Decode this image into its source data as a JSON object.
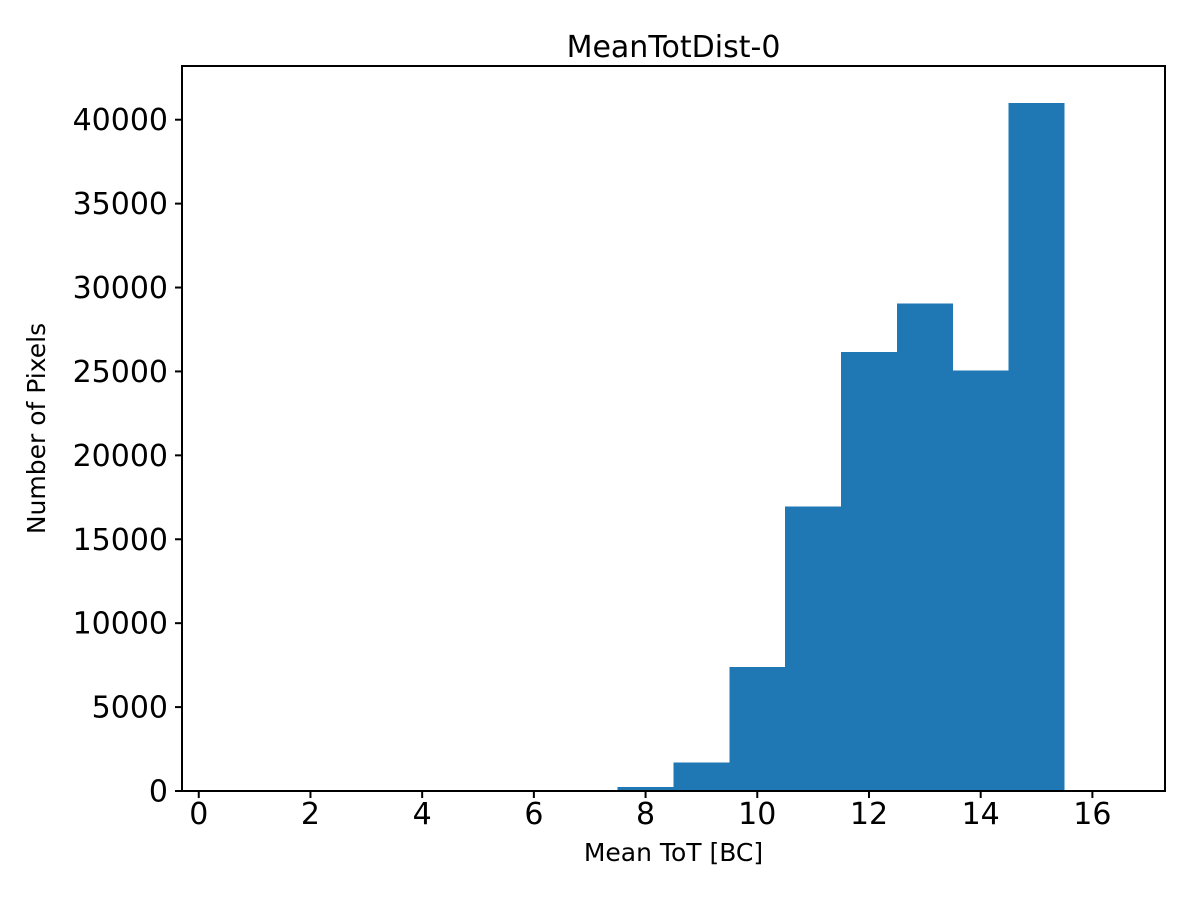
{
  "chart_data": {
    "type": "bar",
    "subtype": "histogram",
    "title": "MeanTotDist-0",
    "xlabel": "Mean ToT [BC]",
    "ylabel": "Number of Pixels",
    "bar_color": "#1f77b4",
    "axis_color": "#000000",
    "text_color": "#000000",
    "background_color": "#ffffff",
    "bin_edges": [
      7.5,
      8.5,
      9.5,
      10.5,
      11.5,
      12.5,
      13.5,
      14.5,
      15.5
    ],
    "values": [
      250,
      1700,
      7400,
      16950,
      26150,
      29050,
      25050,
      41000
    ],
    "xticks": [
      0,
      2,
      4,
      6,
      8,
      10,
      12,
      14,
      16
    ],
    "yticks": [
      0,
      5000,
      10000,
      15000,
      20000,
      25000,
      30000,
      35000,
      40000
    ],
    "xlim": [
      -0.3,
      17.3
    ],
    "ylim": [
      0,
      43200
    ],
    "grid": false,
    "legend_position": "none"
  }
}
